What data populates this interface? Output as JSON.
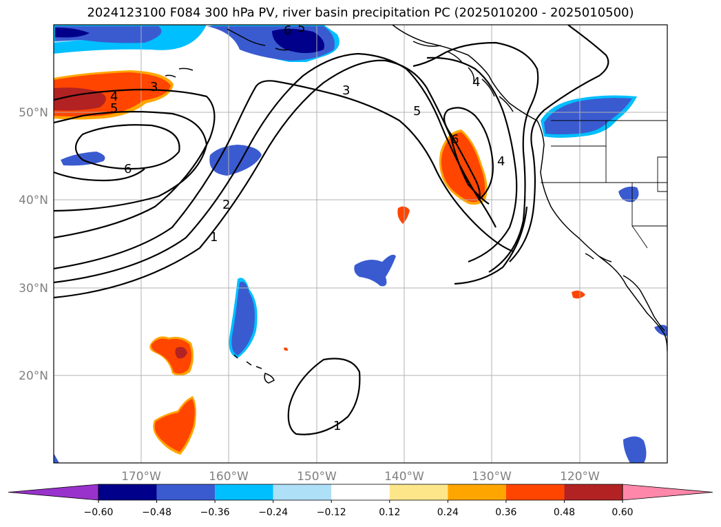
{
  "title": "2024123100 F084 300 hPa PV, river basin precipitation PC (2025010200 - 2025010500)",
  "lon_labels": [
    "170°W",
    "160°W",
    "150°W",
    "140°W",
    "130°W",
    "120°W"
  ],
  "lat_labels": [
    "50°N",
    "40°N",
    "30°N",
    "20°N"
  ],
  "colorbar": {
    "ticks": [
      "−0.60",
      "−0.48",
      "−0.36",
      "−0.24",
      "−0.12",
      "0.12",
      "0.24",
      "0.36",
      "0.48",
      "0.60"
    ],
    "colors": [
      "#9932cc",
      "#00008b",
      "#3a5bd0",
      "#00bfff",
      "#aee0f8",
      "#ffffff",
      "#fde68a",
      "#ffa500",
      "#ff4500",
      "#b22222",
      "#ff88aa"
    ]
  },
  "contour_labels": [
    "1",
    "2",
    "3",
    "4",
    "5",
    "6",
    "3",
    "4",
    "5",
    "6",
    "4",
    "5",
    "6",
    "1"
  ],
  "colors": {
    "neg_dark": "#00008b",
    "neg_mid": "#3a5bd0",
    "neg_light": "#00bfff",
    "pos_mid": "#ff4500",
    "pos_dark": "#b22222",
    "pos_light": "#ffa500"
  }
}
